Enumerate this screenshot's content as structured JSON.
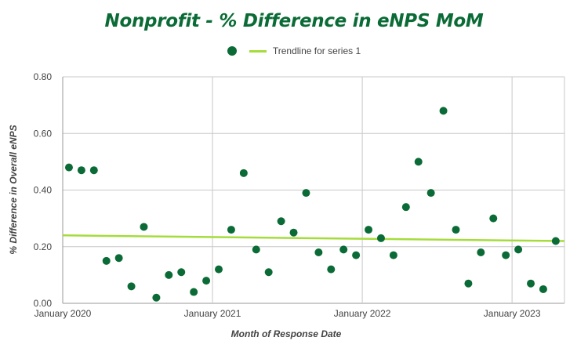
{
  "chart_data": {
    "type": "scatter",
    "title": "Nonprofit - % Difference in eNPS MoM",
    "xlabel": "Month of Response Date",
    "ylabel": "% Difference in Overall eNPS",
    "ylim": [
      0,
      0.8
    ],
    "yticks": [
      "0.00",
      "0.20",
      "0.40",
      "0.60",
      "0.80"
    ],
    "xlim": [
      "2020-01",
      "2023-04"
    ],
    "xticks": [
      {
        "x": "2020-01",
        "label": "January 2020"
      },
      {
        "x": "2021-01",
        "label": "January 2021"
      },
      {
        "x": "2022-01",
        "label": "January 2022"
      },
      {
        "x": "2023-01",
        "label": "January 2023"
      }
    ],
    "grid": true,
    "legend_position": "top-center",
    "colors": {
      "points": "#0b6b36",
      "trendline": "#a5dc3c",
      "grid": "#c8c8c8",
      "axis": "#999999"
    },
    "series": [
      {
        "name": "",
        "x": [
          "2020-01",
          "2020-02",
          "2020-03",
          "2020-04",
          "2020-05",
          "2020-06",
          "2020-07",
          "2020-08",
          "2020-09",
          "2020-10",
          "2020-11",
          "2020-12",
          "2021-01",
          "2021-02",
          "2021-03",
          "2021-04",
          "2021-05",
          "2021-06",
          "2021-07",
          "2021-08",
          "2021-09",
          "2021-10",
          "2021-11",
          "2021-12",
          "2022-01",
          "2022-02",
          "2022-03",
          "2022-04",
          "2022-05",
          "2022-06",
          "2022-07",
          "2022-08",
          "2022-09",
          "2022-10",
          "2022-11",
          "2022-12",
          "2023-01",
          "2023-02",
          "2023-03",
          "2023-04"
        ],
        "y": [
          0.48,
          0.47,
          0.47,
          0.15,
          0.16,
          0.06,
          0.27,
          0.02,
          0.1,
          0.11,
          0.04,
          0.08,
          0.12,
          0.26,
          0.46,
          0.19,
          0.11,
          0.29,
          0.25,
          0.39,
          0.18,
          0.12,
          0.19,
          0.17,
          0.26,
          0.23,
          0.17,
          0.34,
          0.5,
          0.39,
          0.68,
          0.26,
          0.07,
          0.18,
          0.3,
          0.17,
          0.19,
          0.07,
          0.05,
          0.22
        ]
      }
    ],
    "trendline": {
      "name": "Trendline for series 1",
      "start": [
        "2020-01",
        0.24
      ],
      "end": [
        "2023-04",
        0.22
      ]
    }
  }
}
